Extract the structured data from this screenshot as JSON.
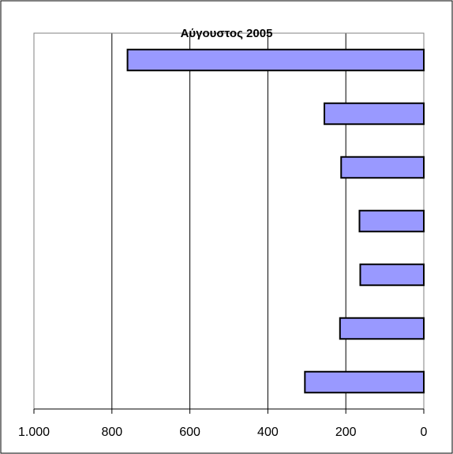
{
  "chart_data": {
    "type": "bar",
    "orientation": "horizontal",
    "title": "Αύγουστος  2005",
    "x_axis": "reversed",
    "xlim": [
      0,
      1000
    ],
    "x_ticks": [
      0,
      200,
      400,
      600,
      800,
      1000
    ],
    "x_tick_labels": [
      "0",
      "200",
      "400",
      "600",
      "800",
      "1.000"
    ],
    "categories": [
      "",
      "",
      "",
      "",
      "",
      "",
      ""
    ],
    "values": [
      760,
      255,
      212,
      165,
      163,
      215,
      305
    ],
    "grid": "vertical",
    "bar_color": "#9999ff",
    "bar_edge_color": "#000000"
  }
}
